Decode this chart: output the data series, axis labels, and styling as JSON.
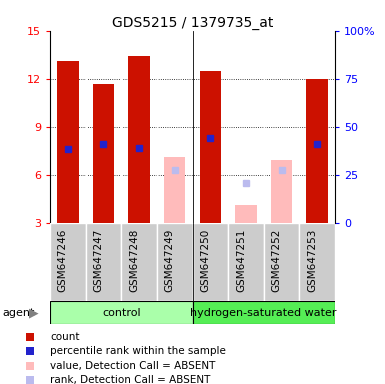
{
  "title": "GDS5215 / 1379735_at",
  "samples": [
    "GSM647246",
    "GSM647247",
    "GSM647248",
    "GSM647249",
    "GSM647250",
    "GSM647251",
    "GSM647252",
    "GSM647253"
  ],
  "red_bars": [
    13.1,
    11.7,
    13.4,
    null,
    12.5,
    null,
    null,
    12.0
  ],
  "blue_marks": [
    7.6,
    7.9,
    7.7,
    null,
    8.3,
    null,
    null,
    7.9
  ],
  "pink_bars": [
    null,
    null,
    null,
    7.1,
    null,
    4.1,
    6.9,
    null
  ],
  "lavender_marks": [
    null,
    null,
    null,
    6.3,
    null,
    5.5,
    6.3,
    null
  ],
  "ylim_left": [
    3,
    15
  ],
  "ylim_right": [
    0,
    100
  ],
  "yticks_left": [
    3,
    6,
    9,
    12,
    15
  ],
  "yticks_right": [
    0,
    25,
    50,
    75,
    100
  ],
  "yticklabels_right": [
    "0",
    "25",
    "50",
    "75",
    "100%"
  ],
  "bar_width": 0.6,
  "color_red": "#cc1100",
  "color_blue": "#2222cc",
  "color_pink": "#ffbbbb",
  "color_lavender": "#bbbbee",
  "color_group_control_light": "#bbffbb",
  "color_group_control_dark": "#44ee44",
  "color_group_h2_light": "#bbffbb",
  "color_group_h2_dark": "#44ee44",
  "color_xticklabels_bg": "#cccccc",
  "group_control_label": "control",
  "group_h2_label": "hydrogen-saturated water",
  "legend_items": [
    {
      "color": "#cc1100",
      "label": "count"
    },
    {
      "color": "#2222cc",
      "label": "percentile rank within the sample"
    },
    {
      "color": "#ffbbbb",
      "label": "value, Detection Call = ABSENT"
    },
    {
      "color": "#bbbbee",
      "label": "rank, Detection Call = ABSENT"
    }
  ],
  "agent_label": "agent",
  "bar_bottom": 3,
  "grid_lines": [
    6,
    9,
    12
  ],
  "ctrl_color": "#aaffaa",
  "h2_color": "#55ee55"
}
